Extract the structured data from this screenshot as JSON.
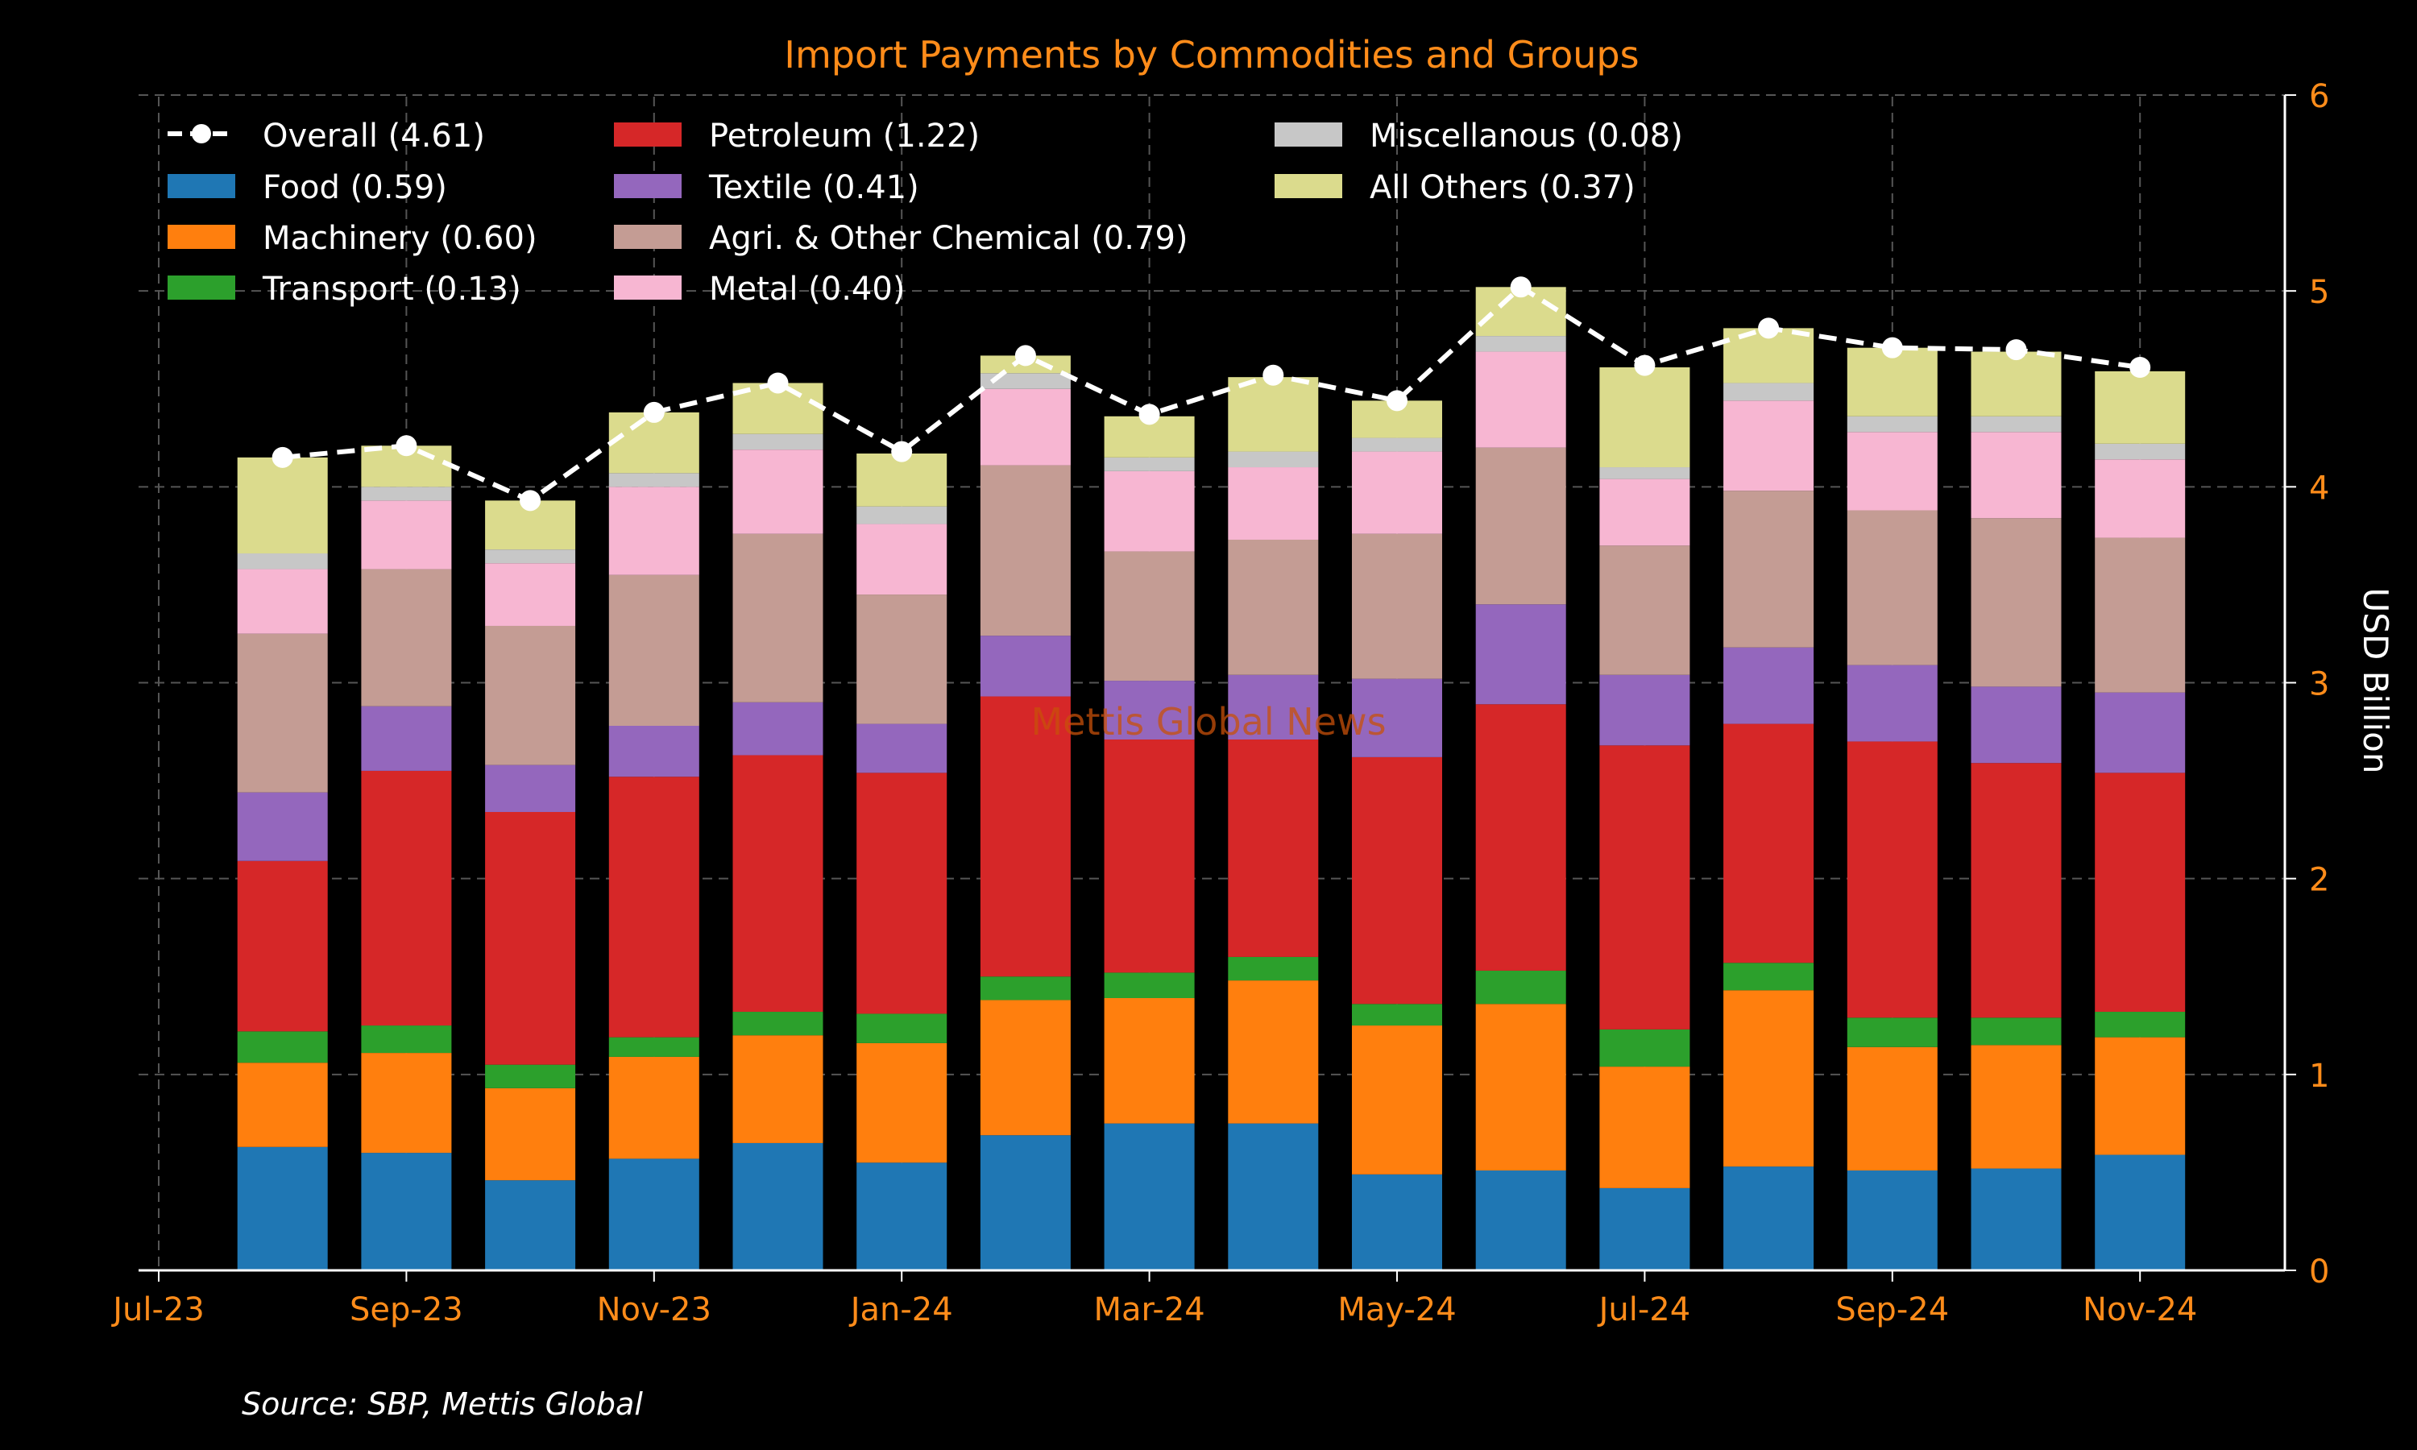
{
  "chart_data": {
    "type": "bar",
    "stacked": true,
    "title": "Import Payments by Commodities and Groups",
    "ylabel": "USD Billion",
    "yaxis_position": "right",
    "ylim": [
      0,
      6
    ],
    "yticks": [
      0,
      1,
      2,
      3,
      4,
      5,
      6
    ],
    "xticks": [
      "Jul-23",
      "Sep-23",
      "Nov-23",
      "Jan-24",
      "Mar-24",
      "May-24",
      "Jul-24",
      "Sep-24",
      "Nov-24"
    ],
    "grid": true,
    "legend_position": "top-left",
    "watermark": "Mettis Global News",
    "source": "Source: SBP, Mettis Global",
    "categories": [
      "Aug-23",
      "Sep-23",
      "Oct-23",
      "Nov-23",
      "Dec-23",
      "Jan-24",
      "Feb-24",
      "Mar-24",
      "Apr-24",
      "May-24",
      "Jun-24",
      "Jul-24",
      "Aug-24",
      "Sep-24",
      "Oct-24",
      "Nov-24"
    ],
    "series": [
      {
        "name": "Food (0.59)",
        "color": "#1f77b4",
        "values": [
          0.63,
          0.6,
          0.46,
          0.57,
          0.65,
          0.55,
          0.69,
          0.75,
          0.75,
          0.49,
          0.51,
          0.42,
          0.53,
          0.51,
          0.52,
          0.59
        ]
      },
      {
        "name": "Machinery (0.60)",
        "color": "#ff7f0e",
        "values": [
          0.43,
          0.51,
          0.47,
          0.52,
          0.55,
          0.61,
          0.69,
          0.64,
          0.73,
          0.76,
          0.85,
          0.62,
          0.9,
          0.63,
          0.63,
          0.6
        ]
      },
      {
        "name": "Transport (0.13)",
        "color": "#2ca02c",
        "values": [
          0.16,
          0.14,
          0.12,
          0.1,
          0.12,
          0.15,
          0.12,
          0.13,
          0.12,
          0.11,
          0.17,
          0.19,
          0.14,
          0.15,
          0.14,
          0.13
        ]
      },
      {
        "name": "Petroleum (1.22)",
        "color": "#d62728",
        "values": [
          0.87,
          1.3,
          1.29,
          1.33,
          1.31,
          1.23,
          1.43,
          1.19,
          1.11,
          1.26,
          1.36,
          1.45,
          1.22,
          1.41,
          1.3,
          1.22
        ]
      },
      {
        "name": "Textile (0.41)",
        "color": "#9467bd",
        "values": [
          0.35,
          0.33,
          0.24,
          0.26,
          0.27,
          0.25,
          0.31,
          0.3,
          0.33,
          0.4,
          0.51,
          0.36,
          0.39,
          0.39,
          0.39,
          0.41
        ]
      },
      {
        "name": "Agri. & Other Chemical (0.79)",
        "color": "#c49c94",
        "values": [
          0.81,
          0.7,
          0.71,
          0.77,
          0.86,
          0.66,
          0.87,
          0.66,
          0.69,
          0.74,
          0.8,
          0.66,
          0.8,
          0.79,
          0.86,
          0.79
        ]
      },
      {
        "name": "Metal (0.40)",
        "color": "#f7b6d2",
        "values": [
          0.33,
          0.35,
          0.32,
          0.45,
          0.43,
          0.36,
          0.39,
          0.41,
          0.37,
          0.42,
          0.49,
          0.34,
          0.46,
          0.4,
          0.44,
          0.4
        ]
      },
      {
        "name": "Miscellanous (0.08)",
        "color": "#c7c7c7",
        "values": [
          0.08,
          0.07,
          0.07,
          0.07,
          0.08,
          0.09,
          0.08,
          0.07,
          0.08,
          0.07,
          0.08,
          0.06,
          0.09,
          0.08,
          0.08,
          0.08
        ]
      },
      {
        "name": "All Others (0.37)",
        "color": "#dbdb8d",
        "values": [
          0.49,
          0.21,
          0.25,
          0.31,
          0.26,
          0.27,
          0.09,
          0.21,
          0.38,
          0.19,
          0.25,
          0.51,
          0.28,
          0.35,
          0.33,
          0.37
        ]
      }
    ],
    "overall": {
      "name": "Overall (4.61)",
      "color": "#ffffff",
      "values": [
        4.15,
        4.21,
        3.93,
        4.38,
        4.53,
        4.18,
        4.67,
        4.37,
        4.57,
        4.44,
        5.02,
        4.62,
        4.81,
        4.71,
        4.7,
        4.61
      ]
    }
  },
  "colors": {
    "background": "#000000",
    "title": "#ff8c1a",
    "tick_labels": "#ff8c1a",
    "axis_label": "#ffffff",
    "legend_text": "#ffffff",
    "watermark": "#c8500a",
    "grid": "#555555"
  }
}
